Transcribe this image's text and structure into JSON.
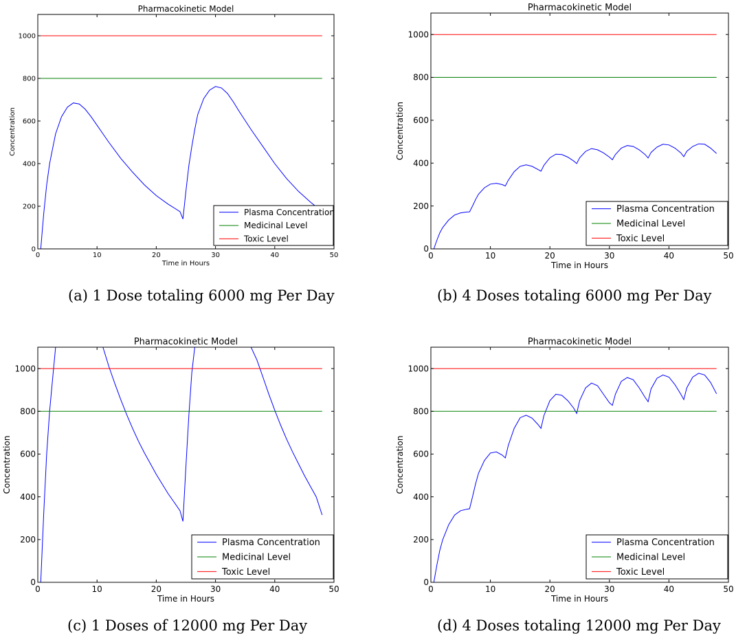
{
  "chart_data": [
    {
      "type": "line",
      "title": "Pharmacokinetic Model",
      "xlabel": "Time in Hours",
      "ylabel": "Concentration",
      "xlim": [
        0,
        50
      ],
      "ylim": [
        0,
        1100
      ],
      "xticks": [
        0,
        10,
        20,
        30,
        40,
        50
      ],
      "yticks": [
        0,
        200,
        400,
        600,
        800,
        1000
      ],
      "legend_position": "lower-right",
      "caption": "(a) 1 Dose totaling 6000 mg Per Day",
      "series": [
        {
          "name": "Plasma Concentration",
          "color": "#0000ff",
          "x": [
            0,
            0.5,
            1,
            1.5,
            2,
            2.5,
            3,
            4,
            5,
            6,
            7,
            8,
            9,
            10,
            11,
            12,
            14,
            16,
            18,
            20,
            22,
            24,
            24.5,
            25,
            25.5,
            26,
            26.5,
            27,
            28,
            29,
            30,
            31,
            32,
            33,
            34,
            36,
            38,
            40,
            42,
            44,
            46,
            48
          ],
          "y": [
            0,
            0,
            165,
            300,
            400,
            470,
            540,
            620,
            665,
            685,
            680,
            655,
            620,
            580,
            540,
            500,
            425,
            360,
            300,
            250,
            210,
            175,
            140,
            270,
            390,
            480,
            560,
            630,
            705,
            745,
            762,
            755,
            730,
            690,
            645,
            560,
            480,
            400,
            330,
            270,
            220,
            175
          ]
        },
        {
          "name": "Medicinal Level",
          "color": "#008000",
          "x": [
            0,
            48
          ],
          "y": [
            800,
            800
          ]
        },
        {
          "name": "Toxic Level",
          "color": "#ff0000",
          "x": [
            0,
            48
          ],
          "y": [
            1000,
            1000
          ]
        }
      ]
    },
    {
      "type": "line",
      "title": "Pharmacokinetic Model",
      "xlabel": "Time in Hours",
      "ylabel": "Concentration",
      "xlim": [
        0,
        50
      ],
      "ylim": [
        0,
        1100
      ],
      "xticks": [
        0,
        10,
        20,
        30,
        40,
        50
      ],
      "yticks": [
        0,
        200,
        400,
        600,
        800,
        1000
      ],
      "legend_position": "lower-right",
      "caption": "(b) 4 Doses totaling 6000 mg Per Day",
      "series": [
        {
          "name": "Plasma Concentration",
          "color": "#0000ff",
          "x": [
            0,
            0.5,
            1,
            1.5,
            2,
            3,
            4,
            5,
            6,
            6.5,
            7,
            7.5,
            8,
            9,
            10,
            11,
            12,
            12.5,
            13,
            14,
            15,
            16,
            17,
            18,
            18.5,
            19,
            20,
            21,
            22,
            23,
            24,
            24.5,
            25,
            26,
            27,
            28,
            29,
            30,
            30.5,
            31,
            32,
            33,
            34,
            35,
            36,
            36.5,
            37,
            38,
            39,
            40,
            41,
            42,
            42.5,
            43,
            44,
            45,
            46,
            47,
            48
          ],
          "y": [
            0,
            0,
            40,
            75,
            100,
            135,
            158,
            168,
            172,
            173,
            200,
            230,
            255,
            285,
            302,
            306,
            300,
            293,
            320,
            360,
            385,
            392,
            385,
            370,
            362,
            390,
            425,
            442,
            440,
            428,
            410,
            398,
            425,
            455,
            468,
            462,
            448,
            428,
            416,
            440,
            470,
            482,
            478,
            462,
            440,
            424,
            450,
            475,
            488,
            485,
            470,
            448,
            430,
            455,
            478,
            490,
            488,
            470,
            445
          ]
        },
        {
          "name": "Medicinal Level",
          "color": "#008000",
          "x": [
            0,
            48
          ],
          "y": [
            800,
            800
          ]
        },
        {
          "name": "Toxic Level",
          "color": "#ff0000",
          "x": [
            0,
            48
          ],
          "y": [
            1000,
            1000
          ]
        }
      ]
    },
    {
      "type": "line",
      "title": "Pharmacokinetic Model",
      "xlabel": "Time in Hours",
      "ylabel": "Concentration",
      "xlim": [
        0,
        50
      ],
      "ylim": [
        0,
        1100
      ],
      "xticks": [
        0,
        10,
        20,
        30,
        40,
        50
      ],
      "yticks": [
        0,
        200,
        400,
        600,
        800,
        1000
      ],
      "legend_position": "lower-right",
      "caption": "(c) 1 Doses of 12000 mg Per Day",
      "series": [
        {
          "name": "Plasma Concentration",
          "color": "#0000ff",
          "x": [
            0,
            0.5,
            1,
            1.5,
            2,
            2.5,
            3,
            11,
            12,
            13,
            14,
            15,
            16,
            17,
            18,
            19,
            20,
            21,
            22,
            23,
            24,
            24.5,
            25,
            25.5,
            26,
            26.5,
            36,
            37,
            38,
            39,
            40,
            41,
            42,
            43,
            44,
            45,
            46,
            47,
            48
          ],
          "y": [
            0,
            0,
            320,
            600,
            800,
            950,
            1100,
            1100,
            1010,
            930,
            855,
            785,
            720,
            660,
            605,
            555,
            505,
            460,
            415,
            375,
            335,
            285,
            540,
            780,
            980,
            1100,
            1100,
            1040,
            960,
            880,
            805,
            735,
            670,
            610,
            555,
            500,
            450,
            400,
            315
          ]
        },
        {
          "name": "Medicinal Level",
          "color": "#008000",
          "x": [
            0,
            48
          ],
          "y": [
            800,
            800
          ]
        },
        {
          "name": "Toxic Level",
          "color": "#ff0000",
          "x": [
            0,
            48
          ],
          "y": [
            1000,
            1000
          ]
        }
      ]
    },
    {
      "type": "line",
      "title": "Pharmacokinetic Model",
      "xlabel": "Time in Hours",
      "ylabel": "Concentration",
      "xlim": [
        0,
        50
      ],
      "ylim": [
        0,
        1100
      ],
      "xticks": [
        0,
        10,
        20,
        30,
        40,
        50
      ],
      "yticks": [
        0,
        200,
        400,
        600,
        800,
        1000
      ],
      "legend_position": "lower-right",
      "caption": "(d) 4 Doses totaling 12000 mg Per Day",
      "series": [
        {
          "name": "Plasma Concentration",
          "color": "#0000ff",
          "x": [
            0,
            0.5,
            1,
            1.5,
            2,
            3,
            4,
            5,
            6,
            6.5,
            7,
            7.5,
            8,
            9,
            10,
            11,
            12,
            12.5,
            13,
            14,
            15,
            16,
            17,
            18,
            18.5,
            19,
            20,
            21,
            22,
            23,
            24,
            24.5,
            25,
            26,
            27,
            28,
            29,
            30,
            30.5,
            31,
            32,
            33,
            34,
            35,
            36,
            36.5,
            37,
            38,
            39,
            40,
            41,
            42,
            42.5,
            43,
            44,
            45,
            46,
            47,
            48
          ],
          "y": [
            0,
            0,
            80,
            150,
            200,
            270,
            315,
            335,
            342,
            344,
            400,
            460,
            510,
            570,
            605,
            610,
            595,
            582,
            640,
            720,
            770,
            782,
            768,
            738,
            720,
            780,
            850,
            880,
            875,
            850,
            815,
            790,
            850,
            910,
            932,
            920,
            880,
            840,
            828,
            880,
            940,
            958,
            948,
            910,
            865,
            845,
            905,
            955,
            970,
            960,
            925,
            880,
            855,
            910,
            960,
            978,
            970,
            935,
            882
          ]
        },
        {
          "name": "Medicinal Level",
          "color": "#008000",
          "x": [
            0,
            48
          ],
          "y": [
            800,
            800
          ]
        },
        {
          "name": "Toxic Level",
          "color": "#ff0000",
          "x": [
            0,
            48
          ],
          "y": [
            1000,
            1000
          ]
        }
      ]
    }
  ]
}
